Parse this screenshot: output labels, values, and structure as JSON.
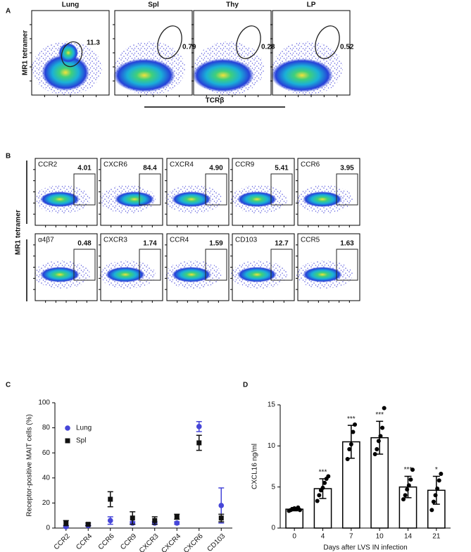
{
  "panel_a": {
    "label": "A",
    "y_label": "MR1 tetramer",
    "x_label": "TCRβ",
    "plots": [
      {
        "title": "Lung",
        "gate": "11.3"
      },
      {
        "title": "Spl",
        "gate": "0.79"
      },
      {
        "title": "Thy",
        "gate": "0.28"
      },
      {
        "title": "LP",
        "gate": "0.52"
      }
    ]
  },
  "panel_b": {
    "label": "B",
    "y_label": "MR1 tetramer",
    "plots": [
      {
        "title": "CCR2",
        "gate": "4.01"
      },
      {
        "title": "CXCR6",
        "gate": "84.4"
      },
      {
        "title": "CXCR4",
        "gate": "4.90"
      },
      {
        "title": "CCR9",
        "gate": "5.41"
      },
      {
        "title": "CCR6",
        "gate": "3.95"
      },
      {
        "title": "α4β7",
        "gate": "0.48"
      },
      {
        "title": "CXCR3",
        "gate": "1.74"
      },
      {
        "title": "CCR4",
        "gate": "1.59"
      },
      {
        "title": "CD103",
        "gate": "12.7"
      },
      {
        "title": "CCR5",
        "gate": "1.63"
      }
    ]
  },
  "chart_data": [
    {
      "type": "dot",
      "panel": "C",
      "y_label": "Receptor-positive MAIT cells (%)",
      "categories": [
        "CCR2",
        "CCR4",
        "CCR6",
        "CCR9",
        "CXCR3",
        "CXCR4",
        "CXCR6",
        "CD103"
      ],
      "series": [
        {
          "name": "Lung",
          "color": "#4646d8",
          "marker": "circle",
          "values": [
            1,
            2,
            6,
            4,
            4,
            4,
            81,
            18
          ],
          "errors": [
            0.5,
            0.5,
            3,
            1,
            1,
            1,
            4,
            14
          ]
        },
        {
          "name": "Spl",
          "color": "#111111",
          "marker": "square",
          "values": [
            4,
            3,
            23,
            8,
            6,
            9,
            68,
            8
          ],
          "errors": [
            2,
            1,
            6,
            5,
            3,
            2,
            6,
            3
          ]
        }
      ],
      "ylim": [
        0,
        100
      ],
      "yticks": [
        0,
        20,
        40,
        60,
        80,
        100
      ],
      "legend": "upper left"
    },
    {
      "type": "bar",
      "panel": "D",
      "y_label": "CXCL16 ng/ml",
      "x_label": "Days after LVS IN infection",
      "categories": [
        "0",
        "4",
        "7",
        "10",
        "14",
        "21"
      ],
      "values": [
        2.3,
        4.8,
        10.5,
        11,
        5,
        4.6
      ],
      "errors": [
        0.2,
        1.2,
        2,
        2,
        1.3,
        1.7
      ],
      "points": [
        [
          2.1,
          2.2,
          2.3,
          2.4,
          2.3,
          2.5,
          2.2
        ],
        [
          3.3,
          4.0,
          4.6,
          4.9,
          5.5,
          6.0,
          6.3
        ],
        [
          8.4,
          9.6,
          10.2,
          11.7,
          12.6
        ],
        [
          9.0,
          9.6,
          10.6,
          11.2,
          12.2,
          14.6
        ],
        [
          3.5,
          4.0,
          4.7,
          5.2,
          5.9,
          7.1
        ],
        [
          2.2,
          3.2,
          4.0,
          4.8,
          5.8,
          6.6
        ]
      ],
      "annotations": [
        null,
        "***",
        "***",
        "***",
        "***",
        "*"
      ],
      "color": "#ffffff",
      "ylim": [
        0,
        15
      ],
      "yticks": [
        0,
        5,
        10,
        15
      ]
    }
  ]
}
